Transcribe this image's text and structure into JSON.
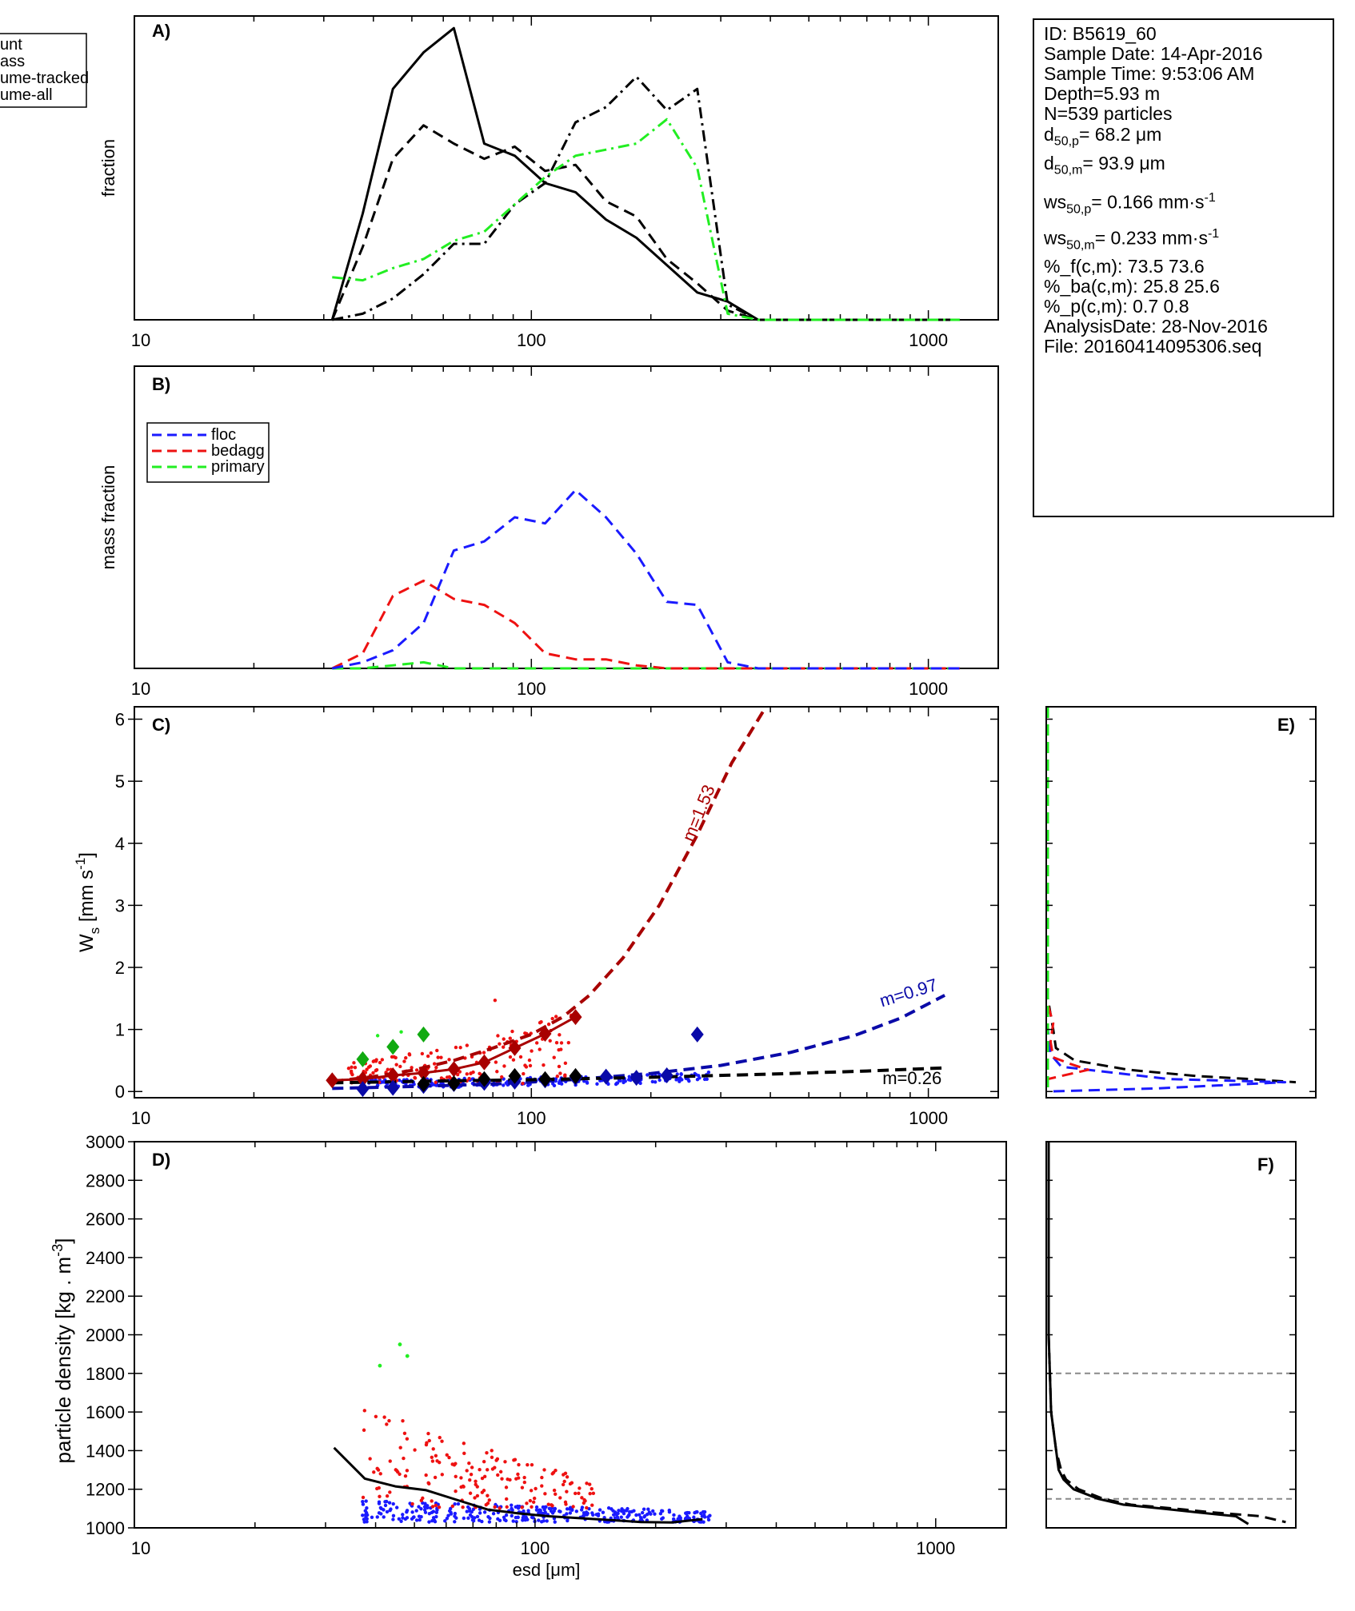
{
  "info": {
    "id": "ID: B5619_60",
    "sample_date": "Sample Date: 14-Apr-2016",
    "sample_time": "Sample Time:  9:53:06 AM",
    "depth": "Depth=5.93 m",
    "n": "N=539 particles",
    "d50p_prefix": "d",
    "d50p_sub": "50,p",
    "d50p_value": "=  68.2 μm",
    "d50m_prefix": "d",
    "d50m_sub": "50,m",
    "d50m_value": "=  93.9 μm",
    "ws50p_prefix": "ws",
    "ws50p_sub": "50,p",
    "ws50p_value": "= 0.166 mm·s",
    "ws50p_sup": "-1",
    "ws50m_prefix": "ws",
    "ws50m_sub": "50,m",
    "ws50m_value": "= 0.233 mm·s",
    "ws50m_sup": "-1",
    "pf": "%_f(c,m): 73.5 73.6",
    "pba": "%_ba(c,m): 25.8 25.6",
    "pp": "%_p(c,m): 0.7 0.8",
    "analysis_date": "AnalysisDate: 28-Nov-2016",
    "file": "File: 20160414095306.seq"
  },
  "colors": {
    "axis": "#000000",
    "count": "#000000",
    "floc": "#1a1aff",
    "bedagg": "#ee1111",
    "primary": "#22ee22",
    "floc_fit": "#0a0aa8",
    "bedagg_fit": "#a80000",
    "primary_marker": "#11aa11",
    "gray_ref": "#888888"
  },
  "chart_data": [
    {
      "id": "A",
      "type": "line",
      "panel_label": "A)",
      "ylabel": "fraction",
      "xscale": "log",
      "xlim": [
        10,
        1500
      ],
      "x_ticks": [
        10,
        100,
        1000
      ],
      "x_tick_labels": [
        "10",
        "100",
        "1000"
      ],
      "ylim": [
        0,
        1
      ],
      "legend": {
        "placement": "outside-left",
        "entries": [
          "unt",
          "ass",
          "ume-tracked",
          "ume-all"
        ]
      },
      "x": [
        31.5,
        37.6,
        44.8,
        53.5,
        63.8,
        76.1,
        90.8,
        108.3,
        129.2,
        154.2,
        183.9,
        219.4,
        261.8,
        312.4,
        372.7,
        444.6,
        530.5,
        632.9,
        755.1,
        900.9,
        1074.9,
        1200
      ],
      "series": [
        {
          "name": "unt",
          "style": "solid",
          "values": [
            0.0,
            0.35,
            0.76,
            0.88,
            0.96,
            0.58,
            0.54,
            0.45,
            0.42,
            0.33,
            0.27,
            0.18,
            0.09,
            0.06,
            0.0,
            0,
            0,
            0,
            0,
            0,
            0,
            0
          ]
        },
        {
          "name": "ass",
          "style": "dashed",
          "values": [
            0.0,
            0.24,
            0.53,
            0.64,
            0.58,
            0.53,
            0.57,
            0.49,
            0.51,
            0.39,
            0.34,
            0.2,
            0.12,
            0.03,
            0.0,
            0,
            0,
            0,
            0,
            0,
            0,
            0
          ]
        },
        {
          "name": "ume-tracked",
          "style": "dashdot",
          "values": [
            0.0,
            0.02,
            0.07,
            0.15,
            0.25,
            0.25,
            0.38,
            0.45,
            0.65,
            0.7,
            0.8,
            0.69,
            0.76,
            0.05,
            0.0,
            0,
            0,
            0,
            0,
            0,
            0,
            0
          ]
        },
        {
          "name": "ume-all",
          "style": "dashdot",
          "color": "primary",
          "values": [
            0.14,
            0.13,
            0.17,
            0.2,
            0.26,
            0.29,
            0.38,
            0.47,
            0.54,
            0.56,
            0.58,
            0.66,
            0.5,
            0.02,
            0.0,
            0,
            0,
            0,
            0,
            0,
            0,
            0
          ]
        }
      ]
    },
    {
      "id": "B",
      "type": "line",
      "panel_label": "B)",
      "ylabel": "mass fraction",
      "xscale": "log",
      "xlim": [
        10,
        1500
      ],
      "x_ticks": [
        10,
        100,
        1000
      ],
      "x_tick_labels": [
        "10",
        "100",
        "1000"
      ],
      "ylim": [
        0,
        1
      ],
      "legend": {
        "placement": "top-left",
        "entries": [
          "floc",
          "bedagg",
          "primary"
        ]
      },
      "x": [
        31.5,
        37.6,
        44.8,
        53.5,
        63.8,
        76.1,
        90.8,
        108.3,
        129.2,
        154.2,
        183.9,
        219.4,
        261.8,
        312.4,
        372.7,
        444.6,
        530.5,
        632.9,
        755.1,
        900.9,
        1074.9,
        1200
      ],
      "series": [
        {
          "name": "floc",
          "values": [
            0.0,
            0.02,
            0.06,
            0.15,
            0.39,
            0.42,
            0.5,
            0.48,
            0.59,
            0.5,
            0.38,
            0.22,
            0.21,
            0.02,
            0,
            0,
            0,
            0,
            0,
            0,
            0,
            0
          ]
        },
        {
          "name": "bedagg",
          "values": [
            0.0,
            0.05,
            0.24,
            0.29,
            0.23,
            0.21,
            0.15,
            0.05,
            0.03,
            0.03,
            0.01,
            0.0,
            0,
            0,
            0,
            0,
            0,
            0,
            0,
            0,
            0,
            0
          ]
        },
        {
          "name": "primary",
          "values": [
            0.0,
            0.0,
            0.01,
            0.02,
            0.0,
            0.0,
            0,
            0,
            0,
            0,
            0,
            0,
            0,
            0,
            0,
            0,
            0,
            0,
            0,
            0,
            0,
            0
          ]
        }
      ]
    },
    {
      "id": "C",
      "type": "scatter",
      "panel_label": "C)",
      "ylabel": "W",
      "ylabel_sub": "s",
      "ylabel_unit": " [mm s",
      "ylabel_sup": "-1",
      "ylabel_close": "]",
      "xscale": "log",
      "xlim": [
        10,
        1500
      ],
      "x_ticks": [
        10,
        100,
        1000
      ],
      "x_tick_labels": [
        "10",
        "100",
        "1000"
      ],
      "ylim": [
        -0.1,
        6.2
      ],
      "y_ticks": [
        0,
        1,
        2,
        3,
        4,
        5,
        6
      ],
      "fits": [
        {
          "name": "bedagg",
          "label": "m=1.53",
          "exponent": 1.53,
          "x": [
            31.5,
            40,
            50,
            63.8,
            80,
            100,
            120,
            140,
            170,
            210,
            260,
            320,
            390
          ],
          "values": [
            0.16,
            0.24,
            0.34,
            0.5,
            0.7,
            0.92,
            1.2,
            1.55,
            2.15,
            3.0,
            4.1,
            5.3,
            6.3
          ]
        },
        {
          "name": "floc",
          "label": "m=0.97",
          "exponent": 0.97,
          "x": [
            31.5,
            50,
            80,
            120,
            200,
            300,
            450,
            650,
            850,
            1100
          ],
          "values": [
            0.05,
            0.08,
            0.12,
            0.18,
            0.29,
            0.42,
            0.63,
            0.9,
            1.18,
            1.55
          ]
        },
        {
          "name": "primary",
          "label": "m=0.26",
          "exponent": 0.26,
          "x": [
            31.5,
            60,
            100,
            200,
            400,
            700,
            1100
          ],
          "values": [
            0.14,
            0.17,
            0.19,
            0.23,
            0.28,
            0.33,
            0.38
          ]
        }
      ],
      "binned": [
        {
          "name": "bedagg",
          "x": [
            31.5,
            37.6,
            44.8,
            53.5,
            63.8,
            76.1,
            90.8,
            108.3,
            129.2
          ],
          "values": [
            0.18,
            0.2,
            0.26,
            0.3,
            0.36,
            0.47,
            0.7,
            0.93,
            1.2
          ]
        },
        {
          "name": "floc",
          "x": [
            37.6,
            44.8,
            53.5,
            63.8,
            76.1,
            90.8,
            108.3,
            129.2,
            154.2,
            183.9,
            219.4,
            261.8
          ],
          "values": [
            0.04,
            0.06,
            0.09,
            0.12,
            0.14,
            0.16,
            0.18,
            0.22,
            0.24,
            0.22,
            0.26,
            0.92
          ]
        },
        {
          "name": "count",
          "x": [
            53.5,
            63.8,
            76.1,
            90.8,
            108.3,
            129.2
          ],
          "values": [
            0.12,
            0.13,
            0.2,
            0.25,
            0.2,
            0.25
          ]
        },
        {
          "name": "primary",
          "x": [
            37.6,
            44.8,
            53.5
          ],
          "values": [
            0.52,
            0.72,
            0.92
          ]
        }
      ]
    },
    {
      "id": "D",
      "type": "scatter",
      "panel_label": "D)",
      "ylabel": "particle density [kg . m",
      "ylabel_sup": "-3",
      "ylabel_close": "]",
      "xlabel": "esd [μm]",
      "xscale": "log",
      "xlim": [
        10,
        1500
      ],
      "x_ticks": [
        10,
        100,
        1000
      ],
      "x_tick_labels": [
        "10",
        "100",
        "1000"
      ],
      "ylim": [
        1000,
        3000
      ],
      "y_ticks": [
        1000,
        1200,
        1400,
        1600,
        1800,
        2000,
        2200,
        2400,
        2600,
        2800,
        3000
      ],
      "mean_line": {
        "x": [
          31.5,
          37.6,
          44.8,
          53.5,
          63.8,
          76.1,
          90.8,
          108.3,
          129.2,
          154.2,
          183.9,
          219.4,
          261.8
        ],
        "values": [
          1415,
          1255,
          1215,
          1195,
          1145,
          1095,
          1075,
          1060,
          1050,
          1040,
          1030,
          1028,
          1045
        ]
      },
      "primary_points": {
        "x": [
          41,
          46,
          48
        ],
        "values": [
          1840,
          1950,
          1890
        ]
      }
    },
    {
      "id": "E",
      "type": "line",
      "panel_label": "E)",
      "orientation": "horizontal-distribution",
      "ylim": [
        -0.1,
        6.2
      ],
      "xlim": [
        0,
        1
      ],
      "series": [
        {
          "name": "count",
          "style": "dashed",
          "y": [
            6.2,
            1.5,
            1.0,
            0.7,
            0.5,
            0.35,
            0.25,
            0.2,
            0.15
          ],
          "values": [
            0.0,
            0.0,
            0.02,
            0.03,
            0.1,
            0.3,
            0.55,
            0.75,
            0.92
          ]
        },
        {
          "name": "floc",
          "style": "dashed",
          "y": [
            6.2,
            1.0,
            0.6,
            0.4,
            0.3,
            0.2,
            0.15,
            0.05,
            0.0
          ],
          "values": [
            0.0,
            0.0,
            0.01,
            0.05,
            0.25,
            0.45,
            0.88,
            0.4,
            0.0
          ]
        },
        {
          "name": "bedagg",
          "style": "dashed",
          "y": [
            6.2,
            1.4,
            1.1,
            0.8,
            0.55,
            0.45,
            0.35,
            0.25,
            0.2
          ],
          "values": [
            0.0,
            0.0,
            0.02,
            0.01,
            0.02,
            0.08,
            0.15,
            0.05,
            0.0
          ]
        },
        {
          "name": "primary",
          "style": "dashed",
          "y": [
            6.2,
            0.0
          ],
          "values": [
            0.0,
            0.0
          ]
        }
      ]
    },
    {
      "id": "F",
      "type": "line",
      "panel_label": "F)",
      "orientation": "horizontal-distribution",
      "ylim": [
        1000,
        3000
      ],
      "xlim": [
        0,
        1
      ],
      "reference_lines": [
        1800,
        1150
      ],
      "series": [
        {
          "name": "count",
          "style": "solid",
          "y": [
            3000,
            2000,
            1600,
            1400,
            1300,
            1250,
            1200,
            1150,
            1120,
            1100,
            1080,
            1060,
            1020
          ],
          "values": [
            0.0,
            0.0,
            0.01,
            0.03,
            0.04,
            0.06,
            0.1,
            0.2,
            0.3,
            0.45,
            0.6,
            0.75,
            0.8
          ]
        },
        {
          "name": "mass",
          "style": "dashed",
          "y": [
            3000,
            2000,
            1600,
            1400,
            1300,
            1250,
            1200,
            1150,
            1120,
            1100,
            1080,
            1060,
            1030
          ],
          "values": [
            0.0,
            0.0,
            0.01,
            0.03,
            0.05,
            0.07,
            0.12,
            0.22,
            0.33,
            0.5,
            0.66,
            0.85,
            0.95
          ]
        }
      ]
    }
  ]
}
